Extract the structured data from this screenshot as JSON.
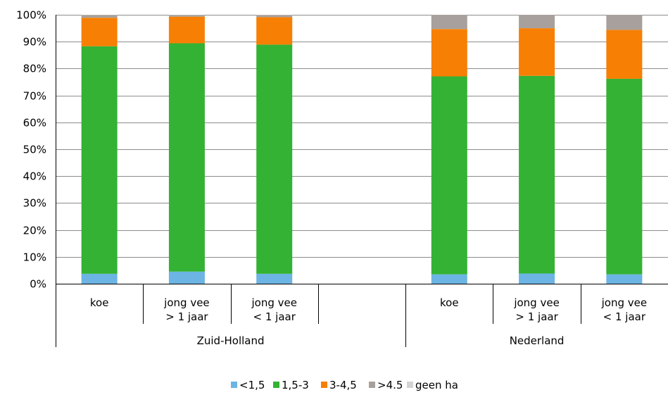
{
  "chart_data": {
    "type": "bar",
    "stacked": true,
    "percent": true,
    "ylim": [
      0,
      100
    ],
    "yticks": [
      "0%",
      "10%",
      "20%",
      "30%",
      "40%",
      "50%",
      "60%",
      "70%",
      "80%",
      "90%",
      "100%"
    ],
    "grid": true,
    "legend_position": "bottom",
    "groups": [
      {
        "label": "Zuid-Holland",
        "slots": 4
      },
      {
        "label": "Nederland",
        "slots": 3
      }
    ],
    "slots": [
      {
        "lines": [
          "koe"
        ]
      },
      {
        "lines": [
          "jong vee",
          "> 1 jaar"
        ]
      },
      {
        "lines": [
          "jong vee",
          "< 1 jaar"
        ]
      },
      {
        "lines": []
      },
      {
        "lines": [
          "koe"
        ]
      },
      {
        "lines": [
          "jong vee",
          "> 1 jaar"
        ]
      },
      {
        "lines": [
          "jong vee",
          "< 1 jaar"
        ]
      }
    ],
    "series": [
      {
        "name": "<1,5",
        "color": "#6cb4e4",
        "values": [
          3.7,
          4.5,
          3.7,
          null,
          3.5,
          3.8,
          3.5
        ]
      },
      {
        "name": "1,5-3",
        "color": "#34b234",
        "values": [
          84.6,
          84.9,
          85.2,
          null,
          73.6,
          73.5,
          72.7
        ]
      },
      {
        "name": "3-4,5",
        "color": "#f77f04",
        "values": [
          10.6,
          9.9,
          10.2,
          null,
          17.6,
          17.7,
          18.2
        ]
      },
      {
        "name": ">4.5",
        "color": "#a8a09c",
        "values": [
          1.0,
          0.6,
          0.8,
          null,
          5.3,
          5.0,
          5.6
        ]
      },
      {
        "name": "geen ha",
        "color": "#d3d3d3",
        "values": [
          0.1,
          0.1,
          0.1,
          null,
          0.0,
          0.0,
          0.0
        ]
      }
    ]
  }
}
